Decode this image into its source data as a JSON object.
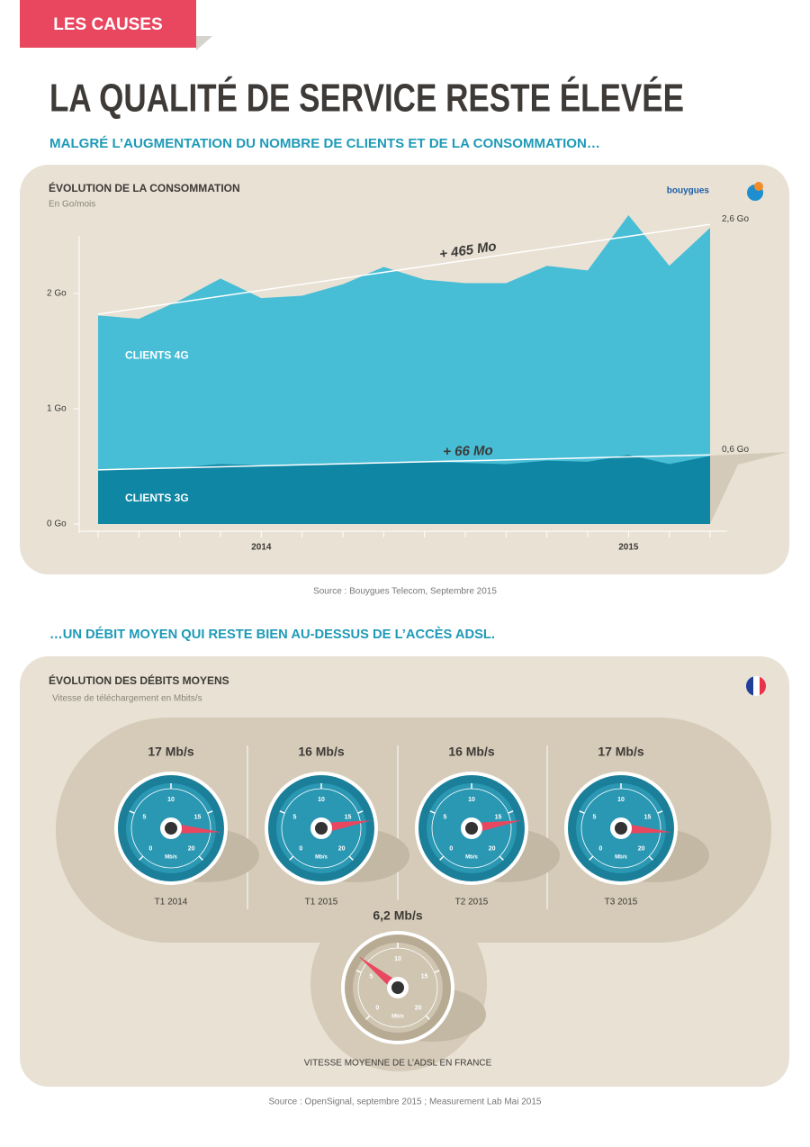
{
  "header": {
    "tag": "LES CAUSES",
    "title": "LA QUALITÉ DE SERVICE RESTE ÉLEVÉE"
  },
  "sections": [
    {
      "heading": "MALGRÉ L’AUGMENTATION DU NOMBRE DE CLIENTS ET DE LA CONSOMMATION…",
      "source": "Source : Bouygues Telecom, Septembre 2015"
    },
    {
      "heading": "…UN DÉBIT MOYEN QUI RESTE BIEN AU-DESSUS DE L’ACCÈS ADSL.",
      "source": "Source : OpenSignal, septembre 2015 ; Measurement Lab Mai 2015"
    }
  ],
  "chart_data": [
    {
      "type": "area",
      "title": "ÉVOLUTION DE LA CONSOMMATION",
      "subtitle": "En Go/mois",
      "logo": "bouygues",
      "categories": [
        null,
        null,
        null,
        null,
        "2014",
        null,
        null,
        null,
        null,
        null,
        null,
        null,
        null,
        "2015",
        null,
        null
      ],
      "ylim": [
        0,
        2.5
      ],
      "yticks": [
        {
          "value": 0,
          "label": "0 Go"
        },
        {
          "value": 1,
          "label": "1 Go"
        },
        {
          "value": 2,
          "label": "2 Go"
        }
      ],
      "series": [
        {
          "name": "CLIENTS 4G",
          "color": "#47bdd6",
          "values": [
            1.81,
            1.78,
            1.94,
            2.13,
            1.96,
            1.98,
            2.08,
            2.23,
            2.12,
            2.09,
            2.09,
            2.24,
            2.2,
            2.68,
            2.24,
            2.57
          ],
          "trend": [
            1.82,
            2.6
          ],
          "trend_label": "+ 465 Mo",
          "end_label": "2,6 Go"
        },
        {
          "name": "CLIENTS 3G",
          "color": "#0f86a3",
          "values": [
            0.47,
            0.48,
            0.49,
            0.52,
            0.51,
            0.51,
            0.52,
            0.53,
            0.54,
            0.53,
            0.52,
            0.55,
            0.54,
            0.6,
            0.52,
            0.59
          ],
          "trend": [
            0.47,
            0.6
          ],
          "trend_label": "+ 66 Mo",
          "end_label": "0,6 Go"
        }
      ]
    },
    {
      "type": "gauge",
      "title": "ÉVOLUTION DES DÉBITS MOYENS",
      "subtitle": "Vitesse de téléchargement en Mbits/s",
      "categories": [
        "T1 2014",
        "T1 2015",
        "T2 2015",
        "T3 2015"
      ],
      "values": [
        17,
        16,
        16,
        17
      ],
      "value_labels": [
        "17 Mb/s",
        "16 Mb/s",
        "16 Mb/s",
        "17 Mb/s"
      ],
      "color": "#1c7f9a",
      "needle_color": "#e8475f",
      "ylim": [
        0,
        20
      ],
      "yticks": [
        0,
        5,
        10,
        15,
        20
      ],
      "unit": "Mb/s",
      "reference": {
        "label": "VITESSE MOYENNE DE L’ADSL EN FRANCE",
        "value": 6.2,
        "value_label": "6,2 Mb/s",
        "color": "#b8ab94"
      }
    }
  ]
}
